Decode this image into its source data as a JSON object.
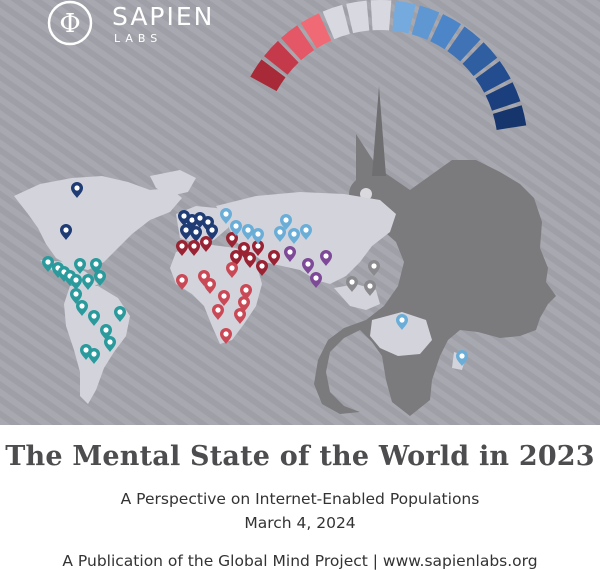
{
  "logo": {
    "wordmark": "SAPIEN",
    "sub": "LABS",
    "symbol": "Φ"
  },
  "title": "The Mental State of the World in 2023",
  "subtitle": "A Perspective on Internet-Enabled Populations",
  "date": "March 4, 2024",
  "publication": "A Publication of the Global Mind Project | www.sapienlabs.org",
  "colors": {
    "background_stripes": "#9b9ca3",
    "continent": "#d3d3db",
    "head": "#7d7d80",
    "pin_darkblue": "#1f3c74",
    "pin_teal": "#2a9a9c",
    "pin_lightblue": "#6aaed8",
    "pin_red": "#c94a56",
    "pin_darkred": "#9a2333",
    "pin_purple": "#7e4a98",
    "pin_gray": "#8a8a8e"
  },
  "gauge_colors": [
    "#a82a38",
    "#c43a4b",
    "#e35766",
    "#f06a76",
    "#d8d8e0",
    "#d8d8e0",
    "#d8d8e0",
    "#74aadd",
    "#5f97d3",
    "#4d86c8",
    "#3f73b6",
    "#2f5ea1",
    "#234d8e",
    "#1b3f7c",
    "#16356c"
  ]
}
